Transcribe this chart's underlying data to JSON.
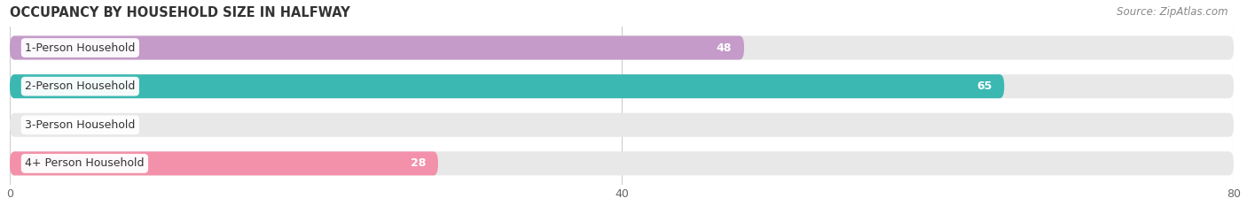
{
  "title": "OCCUPANCY BY HOUSEHOLD SIZE IN HALFWAY",
  "source": "Source: ZipAtlas.com",
  "categories": [
    "1-Person Household",
    "2-Person Household",
    "3-Person Household",
    "4+ Person Household"
  ],
  "values": [
    48,
    65,
    0,
    28
  ],
  "bar_colors": [
    "#c49bc9",
    "#3cb8b2",
    "#a8aedd",
    "#f391aa"
  ],
  "bar_bg_color": "#e8e8e8",
  "xlim": [
    0,
    80
  ],
  "xticks": [
    0,
    40,
    80
  ],
  "label_colors": [
    "white",
    "white",
    "black",
    "black"
  ],
  "title_fontsize": 10.5,
  "source_fontsize": 8.5,
  "tick_fontsize": 9,
  "bar_label_fontsize": 9,
  "cat_fontsize": 9,
  "background_color": "#ffffff"
}
